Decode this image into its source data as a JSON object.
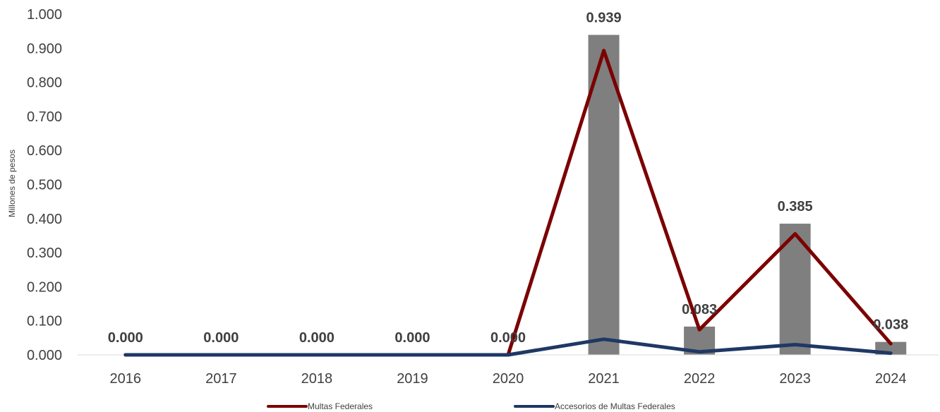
{
  "chart_data": {
    "type": "bar",
    "categories": [
      "2016",
      "2017",
      "2018",
      "2019",
      "2020",
      "2021",
      "2022",
      "2023",
      "2024"
    ],
    "ylabel": "Millones de pesos",
    "ylim": [
      0,
      1.0
    ],
    "y_ticks": [
      "0.000",
      "0.100",
      "0.200",
      "0.300",
      "0.400",
      "0.500",
      "0.600",
      "0.700",
      "0.800",
      "0.900",
      "1.000"
    ],
    "grid": false,
    "legend_position": "bottom",
    "bar_series": {
      "values": [
        0.0,
        0.0,
        0.0,
        0.0,
        0.0,
        0.939,
        0.083,
        0.385,
        0.038
      ],
      "data_labels": [
        "0.000",
        "0.000",
        "0.000",
        "0.000",
        "0.000",
        "0.939",
        "0.083",
        "0.385",
        "0.038"
      ],
      "color": "#7f7f7f"
    },
    "series": [
      {
        "name": "Multas Federales",
        "type": "line",
        "color": "#7b0000",
        "values": [
          0.0,
          0.0,
          0.0,
          0.0,
          0.0,
          0.893,
          0.074,
          0.355,
          0.033
        ]
      },
      {
        "name": "Accesorios de Multas Federales",
        "type": "line",
        "color": "#1f3864",
        "values": [
          0.0,
          0.0,
          0.0,
          0.0,
          0.0,
          0.046,
          0.009,
          0.03,
          0.005
        ]
      }
    ]
  }
}
